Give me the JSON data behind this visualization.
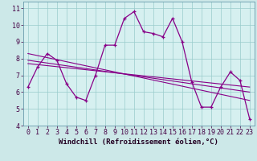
{
  "xlabel": "Windchill (Refroidissement éolien,°C)",
  "background_color": "#cce8e8",
  "plot_bg_color": "#d6f0f0",
  "line_color": "#880088",
  "marker": "+",
  "xlim": [
    -0.5,
    23.5
  ],
  "ylim": [
    4.0,
    11.4
  ],
  "yticks": [
    4,
    5,
    6,
    7,
    8,
    9,
    10,
    11
  ],
  "xticks": [
    0,
    1,
    2,
    3,
    4,
    5,
    6,
    7,
    8,
    9,
    10,
    11,
    12,
    13,
    14,
    15,
    16,
    17,
    18,
    19,
    20,
    21,
    22,
    23
  ],
  "hours": [
    0,
    1,
    2,
    3,
    4,
    5,
    6,
    7,
    8,
    9,
    10,
    11,
    12,
    13,
    14,
    15,
    16,
    17,
    18,
    19,
    20,
    21,
    22,
    23
  ],
  "temp": [
    6.3,
    7.5,
    8.3,
    7.9,
    6.5,
    5.7,
    5.5,
    7.0,
    8.8,
    8.8,
    10.4,
    10.8,
    9.6,
    9.5,
    9.3,
    10.4,
    9.0,
    6.6,
    5.1,
    5.1,
    6.3,
    7.2,
    6.7,
    4.4
  ],
  "trend_lines": [
    {
      "x": [
        0,
        23
      ],
      "y": [
        8.3,
        5.5
      ]
    },
    {
      "x": [
        0,
        23
      ],
      "y": [
        7.9,
        6.0
      ]
    },
    {
      "x": [
        0,
        23
      ],
      "y": [
        7.7,
        6.3
      ]
    }
  ],
  "grid_color": "#99cccc",
  "tick_fontsize": 6,
  "label_fontsize": 6.5,
  "spine_color": "#6699aa"
}
